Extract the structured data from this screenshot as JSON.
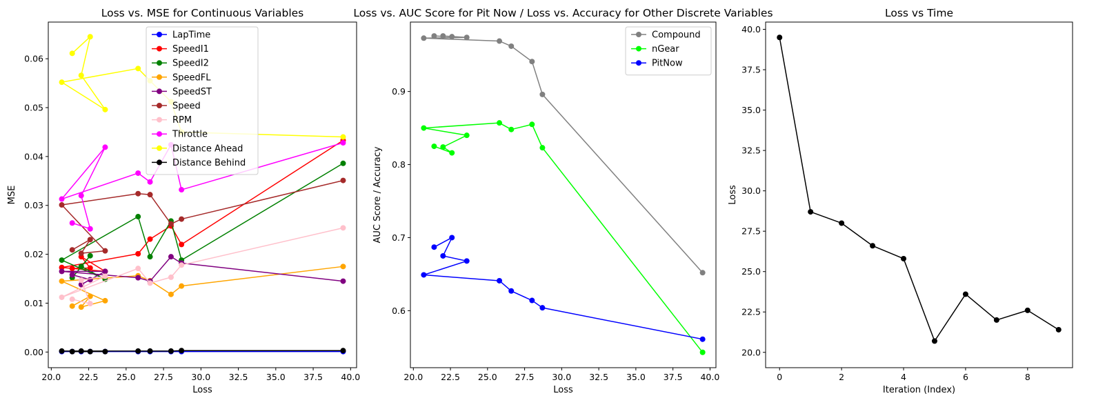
{
  "chart_data": [
    {
      "type": "line",
      "title": "Loss vs. MSE for Continuous Variables",
      "xlabel": "Loss",
      "ylabel": "MSE",
      "xlim": [
        19.8,
        40.4
      ],
      "ylim": [
        -0.0032,
        0.0675
      ],
      "xticks": [
        "20.0",
        "22.5",
        "25.0",
        "27.5",
        "30.0",
        "32.5",
        "35.0",
        "37.5",
        "40.0"
      ],
      "yticks": [
        "0.00",
        "0.01",
        "0.02",
        "0.03",
        "0.04",
        "0.05",
        "0.06"
      ],
      "xtick_values": [
        20,
        22.5,
        25,
        27.5,
        30,
        32.5,
        35,
        37.5,
        40
      ],
      "ytick_values": [
        0,
        0.01,
        0.02,
        0.03,
        0.04,
        0.05,
        0.06
      ],
      "x": [
        39.5,
        28.7,
        28.0,
        26.6,
        25.8,
        20.7,
        23.6,
        22.0,
        22.6,
        21.4
      ],
      "legend": "top-center",
      "series": [
        {
          "name": "LapTime",
          "color": "#0000ff",
          "values": [
            0.0001,
            0.0001,
            0.0001,
            0.0001,
            0.0001,
            0.0001,
            0.0001,
            0.0001,
            0.0001,
            0.0001
          ]
        },
        {
          "name": "SpeedI1",
          "color": "#ff0000",
          "values": [
            0.0433,
            0.022,
            0.0258,
            0.0231,
            0.0201,
            0.0173,
            0.0165,
            0.0195,
            0.0172,
            0.0171
          ]
        },
        {
          "name": "SpeedI2",
          "color": "#008000",
          "values": [
            0.0386,
            0.0188,
            0.0268,
            0.0195,
            0.0277,
            0.0188,
            0.0149,
            0.0175,
            0.0197,
            0.0152
          ]
        },
        {
          "name": "SpeedFL",
          "color": "#ffa500",
          "values": [
            0.0175,
            0.0135,
            0.0118,
            0.0146,
            0.0156,
            0.0145,
            0.0105,
            0.0092,
            0.0114,
            0.0094
          ]
        },
        {
          "name": "SpeedST",
          "color": "#800080",
          "values": [
            0.0145,
            0.0182,
            0.0195,
            0.0145,
            0.0152,
            0.0165,
            0.0165,
            0.0138,
            0.0148,
            0.0158
          ]
        },
        {
          "name": "Speed",
          "color": "#a52a2a",
          "values": [
            0.0351,
            0.0272,
            0.0262,
            0.0322,
            0.0324,
            0.0301,
            0.0207,
            0.0202,
            0.023,
            0.0209
          ]
        },
        {
          "name": "RPM",
          "color": "#ffc0cb",
          "values": [
            0.0254,
            0.0178,
            0.0153,
            0.0141,
            0.0171,
            0.0112,
            0.0155,
            0.0147,
            0.0099,
            0.0108
          ]
        },
        {
          "name": "Throttle",
          "color": "#ff00ff",
          "values": [
            0.0428,
            0.0332,
            0.0424,
            0.0348,
            0.0366,
            0.0313,
            0.0419,
            0.032,
            0.0252,
            0.0264
          ]
        },
        {
          "name": "Distance Ahead",
          "color": "#ffff00",
          "values": [
            0.044,
            0.045,
            0.0512,
            0.0555,
            0.058,
            0.0552,
            0.0496,
            0.0566,
            0.0645,
            0.0611
          ]
        },
        {
          "name": "Distance Behind",
          "color": "#000000",
          "values": [
            0.0003,
            0.0003,
            0.0002,
            0.0002,
            0.0002,
            0.0002,
            0.0001,
            0.0002,
            0.0001,
            0.0001
          ]
        }
      ]
    },
    {
      "type": "line",
      "title": "Loss vs. AUC Score for Pit Now / Loss vs. Accuracy for Other Discrete Variables",
      "xlabel": "Loss",
      "ylabel": "AUC Score / Accuracy",
      "xlim": [
        19.8,
        40.4
      ],
      "ylim": [
        0.522,
        0.995
      ],
      "xticks": [
        "20.0",
        "22.5",
        "25.0",
        "27.5",
        "30.0",
        "32.5",
        "35.0",
        "37.5",
        "40.0"
      ],
      "yticks": [
        "0.6",
        "0.7",
        "0.8",
        "0.9"
      ],
      "xtick_values": [
        20,
        22.5,
        25,
        27.5,
        30,
        32.5,
        35,
        37.5,
        40
      ],
      "ytick_values": [
        0.6,
        0.7,
        0.8,
        0.9
      ],
      "x": [
        39.5,
        28.7,
        28.0,
        26.6,
        25.8,
        20.7,
        23.6,
        22.0,
        22.6,
        21.4
      ],
      "legend": "top-right",
      "series": [
        {
          "name": "Compound",
          "color": "#808080",
          "values": [
            0.652,
            0.896,
            0.941,
            0.962,
            0.969,
            0.973,
            0.974,
            0.976,
            0.975,
            0.976
          ]
        },
        {
          "name": "nGear",
          "color": "#00ff00",
          "values": [
            0.543,
            0.823,
            0.855,
            0.848,
            0.857,
            0.85,
            0.84,
            0.824,
            0.816,
            0.825
          ]
        },
        {
          "name": "PitNow",
          "color": "#0000ff",
          "values": [
            0.561,
            0.604,
            0.614,
            0.627,
            0.641,
            0.649,
            0.668,
            0.675,
            0.7,
            0.687
          ]
        }
      ]
    },
    {
      "type": "line",
      "title": "Loss vs Time",
      "xlabel": "Iteration (Index)",
      "ylabel": "Loss",
      "xlim": [
        -0.45,
        9.45
      ],
      "ylim": [
        19.05,
        40.45
      ],
      "xticks": [
        "0",
        "2",
        "4",
        "6",
        "8"
      ],
      "yticks": [
        "20.0",
        "22.5",
        "25.0",
        "27.5",
        "30.0",
        "32.5",
        "35.0",
        "37.5",
        "40.0"
      ],
      "xtick_values": [
        0,
        2,
        4,
        6,
        8
      ],
      "ytick_values": [
        20,
        22.5,
        25,
        27.5,
        30,
        32.5,
        35,
        37.5,
        40
      ],
      "x": [
        0,
        1,
        2,
        3,
        4,
        5,
        6,
        7,
        8,
        9
      ],
      "series": [
        {
          "color": "#000000",
          "values": [
            39.5,
            28.7,
            28.0,
            26.6,
            25.8,
            20.7,
            23.6,
            22.0,
            22.6,
            21.4
          ]
        }
      ]
    }
  ]
}
